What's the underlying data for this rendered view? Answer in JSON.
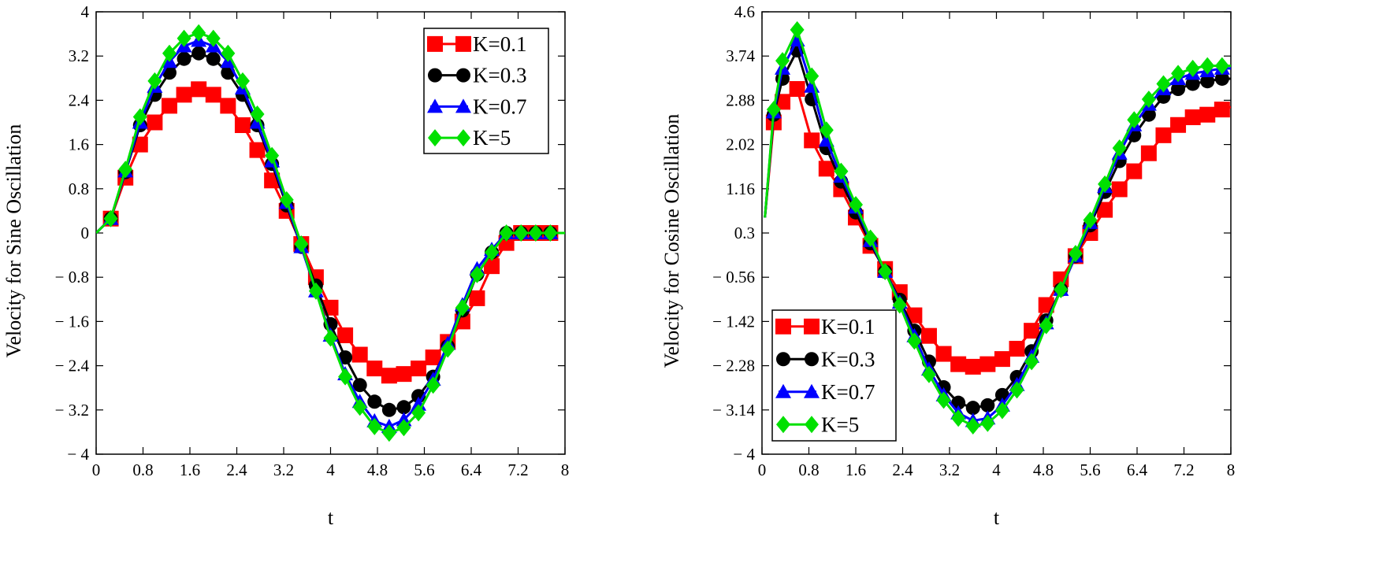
{
  "chart_data": [
    {
      "type": "line",
      "title": "",
      "xlabel": "t",
      "ylabel": "Velocity for Sine Oscillation",
      "xlim": [
        0,
        8
      ],
      "ylim": [
        -4,
        4
      ],
      "x_ticks": [
        0,
        0.8,
        1.6,
        2.4,
        3.2,
        4,
        4.8,
        5.6,
        6.4,
        7.2,
        8
      ],
      "x_tick_labels": [
        "0",
        "0.8",
        "1.6",
        "2.4",
        "3.2",
        "4",
        "4.8",
        "5.6",
        "6.4",
        "7.2",
        "8"
      ],
      "y_ticks": [
        4,
        3.2,
        2.4,
        1.6,
        0.8,
        0,
        -0.8,
        -1.6,
        -2.4,
        -3.2,
        -4
      ],
      "y_tick_labels": [
        "4",
        "3.2",
        "2.4",
        "1.6",
        "0.8",
        "0",
        "− 0.8",
        "− 1.6",
        "− 2.4",
        "− 3.2",
        "− 4"
      ],
      "grid": false,
      "legend_position": "top-right",
      "x": [
        0,
        0.25,
        0.5,
        0.75,
        1.0,
        1.25,
        1.5,
        1.75,
        2.0,
        2.25,
        2.5,
        2.75,
        3.0,
        3.25,
        3.5,
        3.75,
        4.0,
        4.25,
        4.5,
        4.75,
        5.0,
        5.25,
        5.5,
        5.75,
        6.0,
        6.25,
        6.5,
        6.75,
        7.0,
        7.25,
        7.5,
        7.75,
        8.0
      ],
      "series": [
        {
          "name": "K=0.1",
          "color": "#ff0000",
          "marker": "square",
          "values": [
            0,
            0.26,
            1.0,
            1.6,
            2.0,
            2.3,
            2.5,
            2.6,
            2.5,
            2.3,
            1.95,
            1.5,
            0.95,
            0.4,
            -0.2,
            -0.8,
            -1.35,
            -1.85,
            -2.2,
            -2.45,
            -2.58,
            -2.55,
            -2.45,
            -2.25,
            -1.97,
            -1.6,
            -1.18,
            -0.6,
            -0.18,
            0,
            0,
            0,
            0
          ]
        },
        {
          "name": "K=0.3",
          "color": "#000000",
          "marker": "circle",
          "values": [
            0,
            0.26,
            1.1,
            1.95,
            2.5,
            2.9,
            3.15,
            3.25,
            3.15,
            2.9,
            2.5,
            1.95,
            1.25,
            0.5,
            -0.25,
            -0.95,
            -1.65,
            -2.25,
            -2.75,
            -3.05,
            -3.2,
            -3.15,
            -2.95,
            -2.6,
            -2.05,
            -1.4,
            -0.75,
            -0.35,
            0,
            0,
            0,
            0,
            0
          ]
        },
        {
          "name": "K=0.7",
          "color": "#0000ff",
          "marker": "triangle",
          "values": [
            0,
            0.26,
            1.12,
            2.0,
            2.65,
            3.1,
            3.38,
            3.48,
            3.38,
            3.1,
            2.62,
            2.0,
            1.3,
            0.55,
            -0.25,
            -1.05,
            -1.85,
            -2.55,
            -3.05,
            -3.4,
            -3.5,
            -3.38,
            -3.1,
            -2.65,
            -2.0,
            -1.3,
            -0.65,
            -0.3,
            0,
            0,
            0,
            0,
            0
          ]
        },
        {
          "name": "K=5",
          "color": "#00e000",
          "marker": "diamond",
          "values": [
            0,
            0.26,
            1.15,
            2.1,
            2.75,
            3.25,
            3.52,
            3.62,
            3.52,
            3.25,
            2.75,
            2.15,
            1.4,
            0.6,
            -0.2,
            -1.05,
            -1.9,
            -2.6,
            -3.15,
            -3.5,
            -3.62,
            -3.52,
            -3.25,
            -2.75,
            -2.1,
            -1.35,
            -0.75,
            -0.35,
            0,
            0,
            0,
            0,
            0
          ]
        }
      ]
    },
    {
      "type": "line",
      "title": "",
      "xlabel": "t",
      "ylabel": "Velocity for Cosine Oscillation",
      "xlim": [
        0,
        8
      ],
      "ylim": [
        -4,
        4.6
      ],
      "x_ticks": [
        0,
        0.8,
        1.6,
        2.4,
        3.2,
        4,
        4.8,
        5.6,
        6.4,
        7.2,
        8
      ],
      "x_tick_labels": [
        "0",
        "0.8",
        "1.6",
        "2.4",
        "3.2",
        "4",
        "4.8",
        "5.6",
        "6.4",
        "7.2",
        "8"
      ],
      "y_ticks": [
        4.6,
        3.74,
        2.88,
        2.02,
        1.16,
        0.3,
        -0.56,
        -1.42,
        -2.28,
        -3.14,
        -4
      ],
      "y_tick_labels": [
        "4.6",
        "3.74",
        "2.88",
        "2.02",
        "1.16",
        "0.3",
        "− 0.56",
        "− 1.42",
        "− 2.28",
        "− 3.14",
        "− 4"
      ],
      "grid": false,
      "legend_position": "bottom-left",
      "x": [
        0.05,
        0.2,
        0.35,
        0.6,
        0.85,
        1.1,
        1.35,
        1.6,
        1.85,
        2.1,
        2.35,
        2.6,
        2.85,
        3.1,
        3.35,
        3.6,
        3.85,
        4.1,
        4.35,
        4.6,
        4.85,
        5.1,
        5.35,
        5.6,
        5.85,
        6.1,
        6.35,
        6.6,
        6.85,
        7.1,
        7.35,
        7.6,
        7.85,
        8.0
      ],
      "series": [
        {
          "name": "K=0.1",
          "color": "#ff0000",
          "marker": "square",
          "values": [
            0.6,
            2.45,
            2.85,
            3.1,
            2.1,
            1.55,
            1.15,
            0.6,
            0.05,
            -0.4,
            -0.85,
            -1.3,
            -1.7,
            -2.05,
            -2.25,
            -2.3,
            -2.25,
            -2.15,
            -1.95,
            -1.6,
            -1.1,
            -0.6,
            -0.15,
            0.3,
            0.75,
            1.15,
            1.5,
            1.85,
            2.2,
            2.4,
            2.55,
            2.6,
            2.7,
            2.75
          ]
        },
        {
          "name": "K=0.3",
          "color": "#000000",
          "marker": "circle",
          "values": [
            0.6,
            2.6,
            3.3,
            3.85,
            2.9,
            1.95,
            1.3,
            0.7,
            0.1,
            -0.45,
            -1.0,
            -1.6,
            -2.2,
            -2.7,
            -3.0,
            -3.1,
            -3.05,
            -2.85,
            -2.5,
            -2.0,
            -1.4,
            -0.8,
            -0.15,
            0.45,
            1.1,
            1.7,
            2.2,
            2.6,
            2.95,
            3.1,
            3.2,
            3.25,
            3.3,
            3.3
          ]
        },
        {
          "name": "K=0.7",
          "color": "#0000ff",
          "marker": "triangle",
          "values": [
            0.6,
            2.65,
            3.5,
            4.05,
            3.15,
            2.1,
            1.4,
            0.8,
            0.15,
            -0.45,
            -1.05,
            -1.7,
            -2.35,
            -2.85,
            -3.2,
            -3.35,
            -3.3,
            -3.05,
            -2.65,
            -2.1,
            -1.45,
            -0.8,
            -0.15,
            0.5,
            1.2,
            1.85,
            2.4,
            2.8,
            3.1,
            3.3,
            3.4,
            3.45,
            3.5,
            3.5
          ]
        },
        {
          "name": "K=5",
          "color": "#00e000",
          "marker": "diamond",
          "values": [
            0.6,
            2.7,
            3.65,
            4.25,
            3.35,
            2.3,
            1.5,
            0.85,
            0.2,
            -0.45,
            -1.1,
            -1.8,
            -2.45,
            -2.95,
            -3.3,
            -3.45,
            -3.4,
            -3.15,
            -2.75,
            -2.2,
            -1.5,
            -0.8,
            -0.1,
            0.55,
            1.25,
            1.95,
            2.5,
            2.9,
            3.2,
            3.4,
            3.5,
            3.55,
            3.55,
            3.55
          ]
        }
      ]
    }
  ]
}
